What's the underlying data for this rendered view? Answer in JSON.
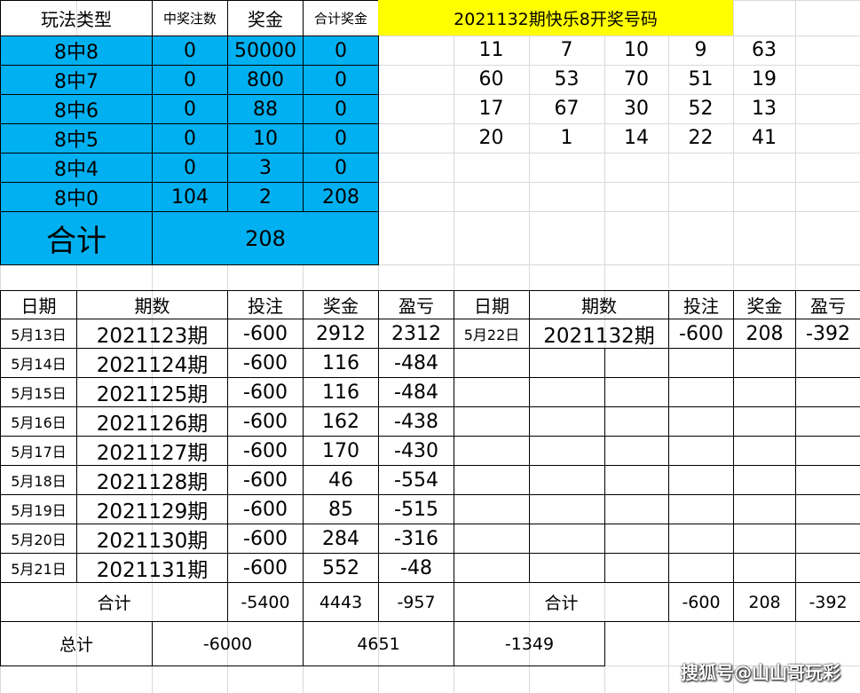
{
  "prize_table": {
    "headers": [
      "玩法类型",
      "中奖注数",
      "奖金",
      "合计奖金"
    ],
    "rows": [
      [
        "8中8",
        0,
        50000,
        0
      ],
      [
        "8中7",
        0,
        800,
        0
      ],
      [
        "8中6",
        0,
        88,
        0
      ],
      [
        "8中5",
        0,
        10,
        0
      ],
      [
        "8中4",
        0,
        3,
        0
      ],
      [
        "8中0",
        104,
        2,
        208
      ]
    ],
    "total_label": "合计",
    "total_value": 208
  },
  "draw": {
    "title": "2021132期快乐8开奖号码",
    "numbers": [
      [
        11,
        7,
        10,
        9,
        63
      ],
      [
        60,
        53,
        70,
        51,
        19
      ],
      [
        17,
        67,
        30,
        52,
        13
      ],
      [
        20,
        1,
        14,
        22,
        41
      ]
    ]
  },
  "records": {
    "headers": [
      "日期",
      "期数",
      "投注",
      "奖金",
      "盈亏"
    ],
    "left_rows": [
      [
        "5月13日",
        "2021123期",
        -600,
        2912,
        2312
      ],
      [
        "5月14日",
        "2021124期",
        -600,
        116,
        -484
      ],
      [
        "5月15日",
        "2021125期",
        -600,
        116,
        -484
      ],
      [
        "5月16日",
        "2021126期",
        -600,
        162,
        -438
      ],
      [
        "5月17日",
        "2021127期",
        -600,
        170,
        -430
      ],
      [
        "5月18日",
        "2021128期",
        -600,
        46,
        -554
      ],
      [
        "5月19日",
        "2021129期",
        -600,
        85,
        -515
      ],
      [
        "5月20日",
        "2021130期",
        -600,
        284,
        -316
      ],
      [
        "5月21日",
        "2021131期",
        -600,
        552,
        -48
      ]
    ],
    "right_headers": [
      "日期",
      "期数",
      "投注",
      "奖金",
      "盈亏"
    ],
    "right_rows": [
      [
        "5月22日",
        "2021132期",
        -600,
        208,
        -392
      ]
    ],
    "left_total": {
      "label": "合计",
      "values": [
        -5400,
        4443,
        -957
      ]
    },
    "right_total": {
      "label": "合计",
      "values": [
        -600,
        208,
        -392
      ]
    },
    "grand_total": {
      "label": "总计",
      "values": [
        -6000,
        4651,
        -1349
      ]
    }
  },
  "watermark": "搜狐号@山山哥玩彩"
}
